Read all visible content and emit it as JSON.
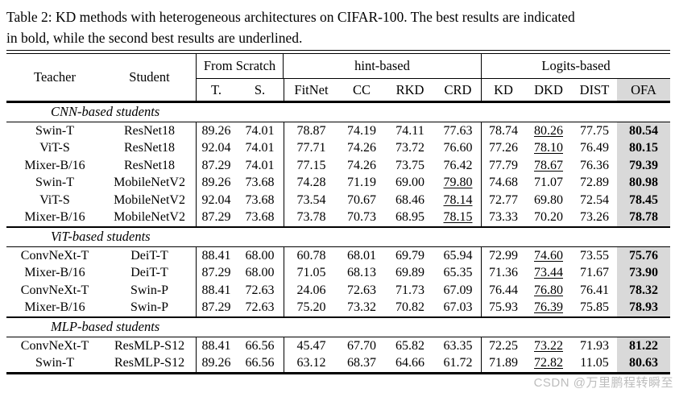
{
  "caption": {
    "line1": "Table 2: KD methods with heterogeneous architectures on CIFAR-100. The best results are indicated",
    "line2": "in bold, while the second best results are underlined.",
    "full_text": "Table 2: KD methods with heterogeneous architectures on CIFAR-100. The best results are indicated in bold, while the second best results are underlined."
  },
  "colors": {
    "ofa_column_bg": "#d9d9d9",
    "text": "#000000",
    "watermark": "#bdbdbd"
  },
  "header": {
    "teacher": "Teacher",
    "student": "Student",
    "groups": [
      {
        "label": "From Scratch",
        "span": 2
      },
      {
        "label": "hint-based",
        "span": 4
      },
      {
        "label": "Logits-based",
        "span": 4
      }
    ],
    "columns": [
      "T.",
      "S.",
      "FitNet",
      "CC",
      "RKD",
      "CRD",
      "KD",
      "DKD",
      "DIST",
      "OFA"
    ]
  },
  "table": {
    "note": "values align with columns T., S., FitNet, CC, RKD, CRD, KD, DKD, DIST, OFA; underline = 0-based index of second-best (underlined) value; OFA column values are bold (best)",
    "sections": [
      {
        "label": "CNN-based students",
        "rows": [
          {
            "teacher": "Swin-T",
            "student": "ResNet18",
            "values": [
              "89.26",
              "74.01",
              "78.87",
              "74.19",
              "74.11",
              "77.63",
              "78.74",
              "80.26",
              "77.75",
              "80.54"
            ],
            "underline": 7
          },
          {
            "teacher": "ViT-S",
            "student": "ResNet18",
            "values": [
              "92.04",
              "74.01",
              "77.71",
              "74.26",
              "73.72",
              "76.60",
              "77.26",
              "78.10",
              "76.49",
              "80.15"
            ],
            "underline": 7
          },
          {
            "teacher": "Mixer-B/16",
            "student": "ResNet18",
            "values": [
              "87.29",
              "74.01",
              "77.15",
              "74.26",
              "73.75",
              "76.42",
              "77.79",
              "78.67",
              "76.36",
              "79.39"
            ],
            "underline": 7
          },
          {
            "teacher": "Swin-T",
            "student": "MobileNetV2",
            "values": [
              "89.26",
              "73.68",
              "74.28",
              "71.19",
              "69.00",
              "79.80",
              "74.68",
              "71.07",
              "72.89",
              "80.98"
            ],
            "underline": 5
          },
          {
            "teacher": "ViT-S",
            "student": "MobileNetV2",
            "values": [
              "92.04",
              "73.68",
              "73.54",
              "70.67",
              "68.46",
              "78.14",
              "72.77",
              "69.80",
              "72.54",
              "78.45"
            ],
            "underline": 5
          },
          {
            "teacher": "Mixer-B/16",
            "student": "MobileNetV2",
            "values": [
              "87.29",
              "73.68",
              "73.78",
              "70.73",
              "68.95",
              "78.15",
              "73.33",
              "70.20",
              "73.26",
              "78.78"
            ],
            "underline": 5
          }
        ]
      },
      {
        "label": "ViT-based students",
        "rows": [
          {
            "teacher": "ConvNeXt-T",
            "student": "DeiT-T",
            "values": [
              "88.41",
              "68.00",
              "60.78",
              "68.01",
              "69.79",
              "65.94",
              "72.99",
              "74.60",
              "73.55",
              "75.76"
            ],
            "underline": 7
          },
          {
            "teacher": "Mixer-B/16",
            "student": "DeiT-T",
            "values": [
              "87.29",
              "68.00",
              "71.05",
              "68.13",
              "69.89",
              "65.35",
              "71.36",
              "73.44",
              "71.67",
              "73.90"
            ],
            "underline": 7
          },
          {
            "teacher": "ConvNeXt-T",
            "student": "Swin-P",
            "values": [
              "88.41",
              "72.63",
              "24.06",
              "72.63",
              "71.73",
              "67.09",
              "76.44",
              "76.80",
              "76.41",
              "78.32"
            ],
            "underline": 7
          },
          {
            "teacher": "Mixer-B/16",
            "student": "Swin-P",
            "values": [
              "87.29",
              "72.63",
              "75.20",
              "73.32",
              "70.82",
              "67.03",
              "75.93",
              "76.39",
              "75.85",
              "78.93"
            ],
            "underline": 7
          }
        ]
      },
      {
        "label": "MLP-based students",
        "rows": [
          {
            "teacher": "ConvNeXt-T",
            "student": "ResMLP-S12",
            "values": [
              "88.41",
              "66.56",
              "45.47",
              "67.70",
              "65.82",
              "63.35",
              "72.25",
              "73.22",
              "71.93",
              "81.22"
            ],
            "underline": 7
          },
          {
            "teacher": "Swin-T",
            "student": "ResMLP-S12",
            "values": [
              "89.26",
              "66.56",
              "63.12",
              "68.37",
              "64.66",
              "61.72",
              "71.89",
              "72.82",
              "11.05",
              "80.63"
            ],
            "underline": 7
          }
        ]
      }
    ]
  },
  "watermark": "CSDN @万里鹏程转瞬至"
}
